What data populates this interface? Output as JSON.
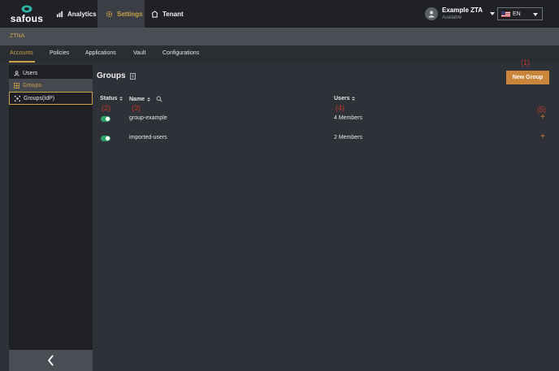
{
  "header": {
    "logo_text": "safous",
    "nav": [
      {
        "label": "Analytics",
        "icon": "analytics-icon"
      },
      {
        "label": "Settings",
        "icon": "gear-icon"
      },
      {
        "label": "Tenant",
        "icon": "tenant-icon"
      }
    ],
    "user": {
      "name": "Example ZTA",
      "status": "Available"
    },
    "language": "EN"
  },
  "breadcrumb": "ZTNA",
  "tabs": [
    "Accounts",
    "Policies",
    "Applications",
    "Vault",
    "Configurations"
  ],
  "sidebar": {
    "items": [
      {
        "label": "Users",
        "icon": "user-icon"
      },
      {
        "label": "Groups",
        "icon": "groups-icon"
      },
      {
        "label": "Groups(IdP)",
        "icon": "idp-groups-icon"
      }
    ],
    "collapse_icon": "chevron-left-icon"
  },
  "main": {
    "title": "Groups",
    "new_button": "New Group",
    "columns": [
      "Status",
      "Name",
      "Users"
    ],
    "rows": [
      {
        "name": "group-example",
        "users": "4 Members",
        "enabled": true
      },
      {
        "name": "imported-users",
        "users": "2 Members",
        "enabled": true
      }
    ]
  },
  "annotations": [
    "(1)",
    "(2)",
    "(3)",
    "(4)",
    "(5)"
  ],
  "colors": {
    "accent": "#c9a24a",
    "button": "#c9853a",
    "toggle_on": "#2ea36a",
    "annotation": "#c0392b"
  }
}
